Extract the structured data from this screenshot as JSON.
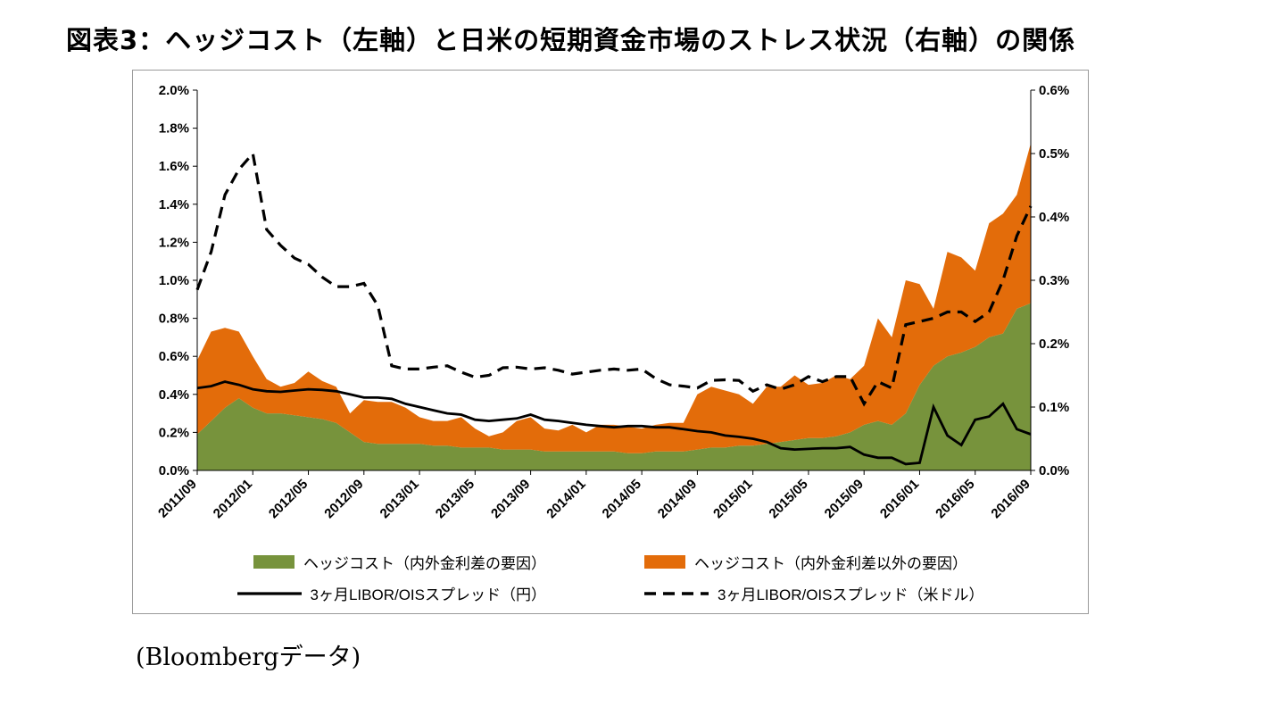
{
  "page": {
    "title": "図表3：ヘッジコスト（左軸）と日米の短期資金市場のストレス状況（右軸）の関係",
    "source": "(Bloombergデータ)"
  },
  "chart_data": {
    "type": "area",
    "title": "図表3：ヘッジコスト（左軸）と日米の短期資金市場のストレス状況（右軸）の関係",
    "n_points": 61,
    "x_tick_every": 4,
    "x_tick_labels": [
      "2011/09",
      "2012/01",
      "2012/05",
      "2012/09",
      "2013/01",
      "2013/05",
      "2013/09",
      "2014/01",
      "2014/05",
      "2014/09",
      "2015/01",
      "2015/05",
      "2015/09",
      "2016/01",
      "2016/05",
      "2016/09"
    ],
    "left_axis": {
      "min": 0,
      "max": 2.0,
      "step": 0.2,
      "tick_labels": [
        "0.0%",
        "0.2%",
        "0.4%",
        "0.6%",
        "0.8%",
        "1.0%",
        "1.2%",
        "1.4%",
        "1.6%",
        "1.8%",
        "2.0%"
      ]
    },
    "right_axis": {
      "min": 0,
      "max": 0.6,
      "step": 0.1,
      "tick_labels": [
        "0.0%",
        "0.1%",
        "0.2%",
        "0.3%",
        "0.4%",
        "0.5%",
        "0.6%"
      ]
    },
    "grid": false,
    "legend_position": "bottom",
    "series": [
      {
        "name": "ヘッジコスト（内外金利差の要因）",
        "type": "area-stacked",
        "axis": "left",
        "color": "#77933C",
        "values": [
          0.19,
          0.26,
          0.33,
          0.38,
          0.33,
          0.3,
          0.3,
          0.29,
          0.28,
          0.27,
          0.25,
          0.2,
          0.15,
          0.14,
          0.14,
          0.14,
          0.14,
          0.13,
          0.13,
          0.12,
          0.12,
          0.12,
          0.11,
          0.11,
          0.11,
          0.1,
          0.1,
          0.1,
          0.1,
          0.1,
          0.1,
          0.09,
          0.09,
          0.1,
          0.1,
          0.1,
          0.11,
          0.12,
          0.12,
          0.13,
          0.13,
          0.14,
          0.15,
          0.16,
          0.17,
          0.17,
          0.18,
          0.2,
          0.24,
          0.26,
          0.24,
          0.3,
          0.45,
          0.55,
          0.6,
          0.62,
          0.65,
          0.7,
          0.72,
          0.85,
          0.88
        ]
      },
      {
        "name": "ヘッジコスト（内外金利差以外の要因）",
        "type": "area-stacked",
        "axis": "left",
        "color": "#E36C0A",
        "values": [
          0.39,
          0.47,
          0.42,
          0.35,
          0.27,
          0.18,
          0.14,
          0.17,
          0.24,
          0.2,
          0.19,
          0.1,
          0.22,
          0.22,
          0.22,
          0.19,
          0.14,
          0.13,
          0.13,
          0.16,
          0.1,
          0.06,
          0.09,
          0.15,
          0.17,
          0.12,
          0.11,
          0.14,
          0.1,
          0.14,
          0.14,
          0.14,
          0.13,
          0.14,
          0.15,
          0.15,
          0.29,
          0.32,
          0.3,
          0.27,
          0.22,
          0.3,
          0.29,
          0.34,
          0.28,
          0.29,
          0.32,
          0.28,
          0.31,
          0.54,
          0.46,
          0.7,
          0.53,
          0.3,
          0.55,
          0.5,
          0.4,
          0.6,
          0.63,
          0.6,
          0.84
        ]
      },
      {
        "name": "3ヶ月LIBOR/OISスプレッド（円）",
        "type": "line-solid",
        "axis": "right",
        "color": "#000000",
        "values": [
          0.13,
          0.133,
          0.14,
          0.135,
          0.128,
          0.125,
          0.124,
          0.126,
          0.128,
          0.127,
          0.125,
          0.12,
          0.115,
          0.115,
          0.113,
          0.105,
          0.1,
          0.095,
          0.09,
          0.088,
          0.08,
          0.078,
          0.08,
          0.082,
          0.088,
          0.08,
          0.078,
          0.075,
          0.072,
          0.07,
          0.068,
          0.07,
          0.07,
          0.068,
          0.068,
          0.065,
          0.062,
          0.06,
          0.055,
          0.053,
          0.05,
          0.045,
          0.035,
          0.033,
          0.034,
          0.035,
          0.035,
          0.037,
          0.025,
          0.02,
          0.02,
          0.01,
          0.012,
          0.1,
          0.055,
          0.04,
          0.08,
          0.085,
          0.105,
          0.065,
          0.057
        ]
      },
      {
        "name": "3ヶ月LIBOR/OISスプレッド（米ドル）",
        "type": "line-dashed",
        "axis": "right",
        "color": "#000000",
        "values": [
          0.285,
          0.345,
          0.435,
          0.475,
          0.5,
          0.38,
          0.355,
          0.335,
          0.325,
          0.305,
          0.29,
          0.29,
          0.295,
          0.26,
          0.165,
          0.16,
          0.16,
          0.163,
          0.165,
          0.155,
          0.147,
          0.15,
          0.162,
          0.163,
          0.16,
          0.162,
          0.158,
          0.152,
          0.155,
          0.158,
          0.16,
          0.158,
          0.16,
          0.145,
          0.135,
          0.133,
          0.13,
          0.142,
          0.143,
          0.142,
          0.125,
          0.135,
          0.128,
          0.135,
          0.148,
          0.14,
          0.148,
          0.148,
          0.105,
          0.14,
          0.13,
          0.23,
          0.235,
          0.24,
          0.25,
          0.25,
          0.235,
          0.25,
          0.3,
          0.37,
          0.417
        ]
      }
    ]
  }
}
